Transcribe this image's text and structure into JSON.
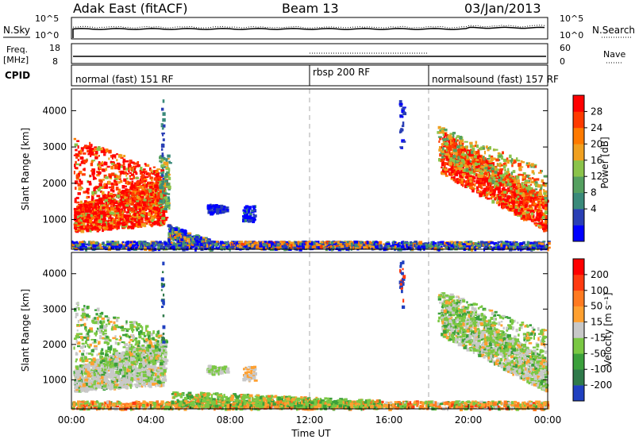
{
  "header": {
    "station": "Adak East (fitACF)",
    "beam": "Beam 13",
    "date": "03/Jan/2013"
  },
  "top_panel": {
    "left_label": "N.Sky",
    "right_label": "N.Search",
    "left_ticks": [
      "10^5",
      "10^0"
    ],
    "right_ticks": [
      "10^5",
      "10^0"
    ]
  },
  "freq_panel": {
    "left_label_1": "Freq.",
    "left_label_2": "[MHz]",
    "right_label": "Nave",
    "left_ticks": [
      "18",
      "8"
    ],
    "right_ticks": [
      "60",
      "0"
    ]
  },
  "cpid": {
    "label": "CPID",
    "segments": [
      {
        "name": "normal (fast) 151 RF",
        "start_hour": 0
      },
      {
        "name": "rbsp 200 RF",
        "start_hour": 12
      },
      {
        "name": "normalsound (fast) 157 RF",
        "start_hour": 18
      }
    ]
  },
  "x_axis": {
    "label": "Time UT",
    "ticks": [
      "00:00",
      "04:00",
      "08:00",
      "12:00",
      "16:00",
      "20:00",
      "00:00"
    ],
    "range_hours": [
      0,
      24
    ]
  },
  "chart_data": [
    {
      "type": "heatmap",
      "name": "power",
      "ylabel": "Slant Range [km]",
      "yticks": [
        "4000",
        "3000",
        "2000",
        "1000"
      ],
      "ylim": [
        180,
        4600
      ],
      "colorbar_label": "Power [dB]",
      "colorbar_ticks": [
        "28",
        "24",
        "20",
        "16",
        "12",
        "8",
        "4"
      ],
      "colorbar_colors": [
        "#0000ff",
        "#2a3fb5",
        "#3a8a7a",
        "#55a060",
        "#8bc34a",
        "#f0a020",
        "#ff7a00",
        "#ff3a00",
        "#ff0000"
      ]
    },
    {
      "type": "heatmap",
      "name": "velocity",
      "ylabel": "Slant Range [km]",
      "yticks": [
        "4000",
        "3000",
        "2000",
        "1000"
      ],
      "ylim": [
        180,
        4600
      ],
      "colorbar_label": "Velocity [m s⁻¹]",
      "colorbar_ticks": [
        "200",
        "100",
        "50",
        "15",
        "-15",
        "-50",
        "-100",
        "-200"
      ],
      "colorbar_colors": [
        "#2040c0",
        "#2f7a4a",
        "#3ba03b",
        "#7ac843",
        "#c8c8c8",
        "#ffa030",
        "#ff7a20",
        "#ff3a10",
        "#ff0000"
      ]
    }
  ]
}
